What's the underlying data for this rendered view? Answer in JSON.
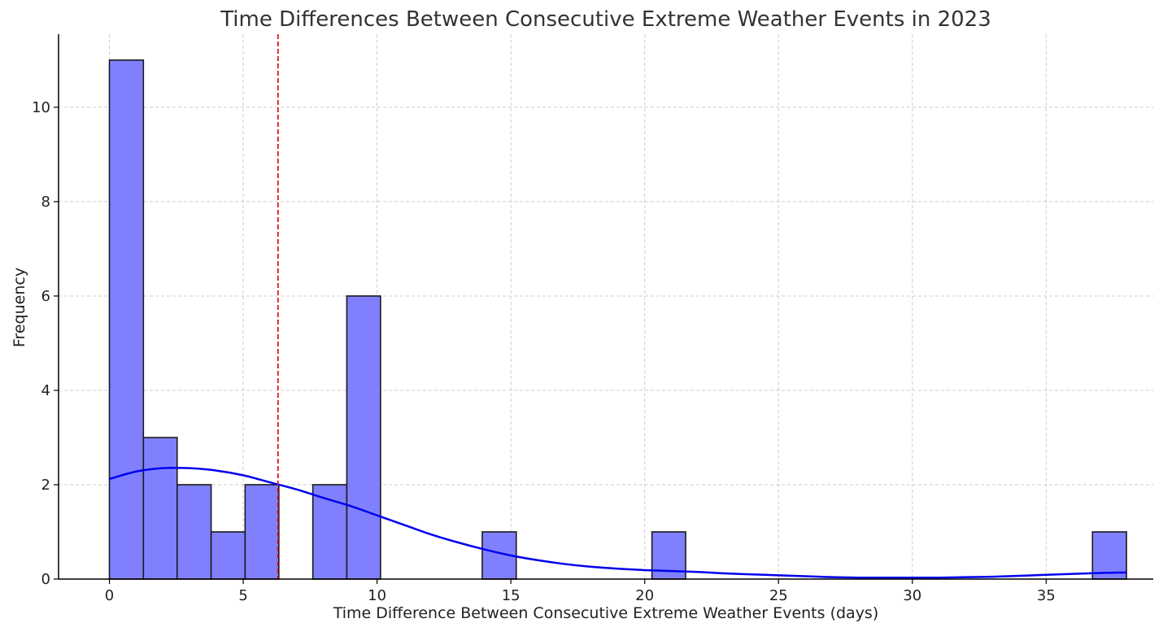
{
  "chart_data": {
    "type": "bar",
    "title": "Time Differences Between Consecutive Extreme Weather Events in 2023",
    "xlabel": "Time Difference Between Consecutive Extreme Weather Events (days)",
    "ylabel": "Frequency",
    "xlim": [
      -1.9,
      39.0
    ],
    "ylim": [
      0,
      11.55
    ],
    "x_ticks": [
      0,
      5,
      10,
      15,
      20,
      25,
      30,
      35
    ],
    "y_ticks": [
      0,
      2,
      4,
      6,
      8,
      10
    ],
    "grid": true,
    "bins": [
      {
        "start": 0.0,
        "end": 1.27,
        "count": 11
      },
      {
        "start": 1.27,
        "end": 2.53,
        "count": 3
      },
      {
        "start": 2.53,
        "end": 3.8,
        "count": 2
      },
      {
        "start": 3.8,
        "end": 5.07,
        "count": 1
      },
      {
        "start": 5.07,
        "end": 6.33,
        "count": 2
      },
      {
        "start": 6.33,
        "end": 7.6,
        "count": 0
      },
      {
        "start": 7.6,
        "end": 8.87,
        "count": 2
      },
      {
        "start": 8.87,
        "end": 10.13,
        "count": 6
      },
      {
        "start": 10.13,
        "end": 11.4,
        "count": 0
      },
      {
        "start": 11.4,
        "end": 12.67,
        "count": 0
      },
      {
        "start": 12.67,
        "end": 13.93,
        "count": 0
      },
      {
        "start": 13.93,
        "end": 15.2,
        "count": 1
      },
      {
        "start": 15.2,
        "end": 16.47,
        "count": 0
      },
      {
        "start": 16.47,
        "end": 17.73,
        "count": 0
      },
      {
        "start": 17.73,
        "end": 19.0,
        "count": 0
      },
      {
        "start": 19.0,
        "end": 20.27,
        "count": 0
      },
      {
        "start": 20.27,
        "end": 21.53,
        "count": 1
      },
      {
        "start": 21.53,
        "end": 22.8,
        "count": 0
      },
      {
        "start": 22.8,
        "end": 24.07,
        "count": 0
      },
      {
        "start": 24.07,
        "end": 25.33,
        "count": 0
      },
      {
        "start": 25.33,
        "end": 26.6,
        "count": 0
      },
      {
        "start": 26.6,
        "end": 27.87,
        "count": 0
      },
      {
        "start": 27.87,
        "end": 29.13,
        "count": 0
      },
      {
        "start": 29.13,
        "end": 30.4,
        "count": 0
      },
      {
        "start": 30.4,
        "end": 31.67,
        "count": 0
      },
      {
        "start": 31.67,
        "end": 32.93,
        "count": 0
      },
      {
        "start": 32.93,
        "end": 34.2,
        "count": 0
      },
      {
        "start": 34.2,
        "end": 35.47,
        "count": 0
      },
      {
        "start": 35.47,
        "end": 36.73,
        "count": 0
      },
      {
        "start": 36.73,
        "end": 38.0,
        "count": 1
      }
    ],
    "mean_line": {
      "x": 6.3
    },
    "kde_curve": {
      "x": [
        0,
        1,
        2,
        3,
        4,
        5,
        6,
        7,
        8,
        9,
        10,
        11,
        12,
        13,
        14,
        15,
        16,
        17,
        18,
        19,
        20,
        21,
        22,
        23,
        24,
        25,
        26,
        27,
        28,
        29,
        30,
        31,
        32,
        33,
        34,
        35,
        36,
        37,
        38
      ],
      "y": [
        2.12,
        2.28,
        2.35,
        2.35,
        2.3,
        2.2,
        2.05,
        1.9,
        1.72,
        1.55,
        1.35,
        1.15,
        0.95,
        0.78,
        0.63,
        0.5,
        0.4,
        0.32,
        0.26,
        0.22,
        0.19,
        0.17,
        0.15,
        0.12,
        0.1,
        0.08,
        0.06,
        0.04,
        0.03,
        0.03,
        0.03,
        0.03,
        0.04,
        0.05,
        0.07,
        0.09,
        0.11,
        0.13,
        0.14
      ]
    },
    "colors": {
      "bar_fill": "#8080ff",
      "bar_edge": "#1a1a1a",
      "kde_line": "#0000ee",
      "mean_line": "#dd0000",
      "grid": "#cccccc"
    }
  }
}
